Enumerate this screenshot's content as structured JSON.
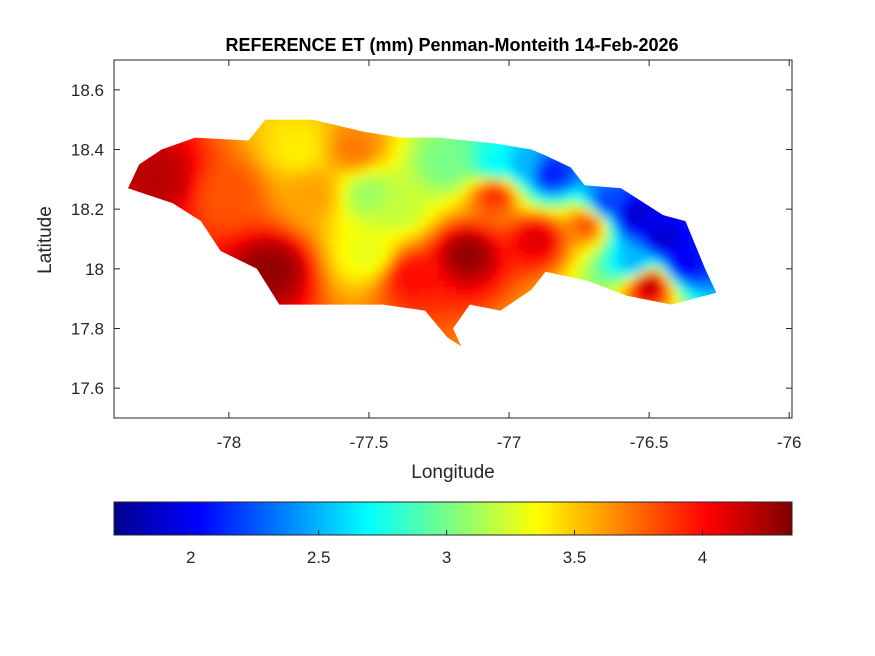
{
  "chart_data": {
    "type": "heatmap",
    "title": "REFERENCE ET (mm) Penman-Monteith 14-Feb-2026",
    "xlabel": "Longitude",
    "ylabel": "Latitude",
    "xlim": [
      -78.41,
      -75.99
    ],
    "ylim": [
      17.5,
      18.7
    ],
    "xticks": [
      -78,
      -77.5,
      -77,
      -76.5,
      -76
    ],
    "xtick_labels": [
      "-78",
      "-77.5",
      "-77",
      "-76.5",
      "-76"
    ],
    "yticks": [
      17.6,
      17.8,
      18,
      18.2,
      18.4,
      18.6
    ],
    "ytick_labels": [
      "17.6",
      "17.8",
      "18",
      "18.2",
      "18.4",
      "18.6"
    ],
    "grid": false,
    "colormap": "jet",
    "colorbar": {
      "orientation": "horizontal",
      "placement": "below",
      "clim": [
        1.7,
        4.35
      ],
      "ticks": [
        2,
        2.5,
        3,
        3.5,
        4
      ],
      "tick_labels": [
        "2",
        "2.5",
        "3",
        "3.5",
        "4"
      ]
    },
    "region_outline_lonlat": [
      [
        -78.36,
        18.27
      ],
      [
        -78.32,
        18.35
      ],
      [
        -78.24,
        18.4
      ],
      [
        -78.12,
        18.44
      ],
      [
        -77.93,
        18.43
      ],
      [
        -77.87,
        18.5
      ],
      [
        -77.7,
        18.5
      ],
      [
        -77.52,
        18.46
      ],
      [
        -77.39,
        18.44
      ],
      [
        -77.25,
        18.44
      ],
      [
        -77.05,
        18.42
      ],
      [
        -76.92,
        18.4
      ],
      [
        -76.87,
        18.38
      ],
      [
        -76.78,
        18.34
      ],
      [
        -76.73,
        18.28
      ],
      [
        -76.6,
        18.27
      ],
      [
        -76.45,
        18.18
      ],
      [
        -76.37,
        18.16
      ],
      [
        -76.3,
        18.0
      ],
      [
        -76.26,
        17.92
      ],
      [
        -76.42,
        17.88
      ],
      [
        -76.58,
        17.91
      ],
      [
        -76.72,
        17.96
      ],
      [
        -76.87,
        17.99
      ],
      [
        -76.92,
        17.93
      ],
      [
        -77.03,
        17.86
      ],
      [
        -77.14,
        17.88
      ],
      [
        -77.2,
        17.8
      ],
      [
        -77.17,
        17.74
      ],
      [
        -77.22,
        17.77
      ],
      [
        -77.3,
        17.86
      ],
      [
        -77.45,
        17.88
      ],
      [
        -77.55,
        17.88
      ],
      [
        -77.82,
        17.88
      ],
      [
        -77.9,
        18.0
      ],
      [
        -78.03,
        18.06
      ],
      [
        -78.1,
        18.16
      ],
      [
        -78.2,
        18.22
      ]
    ],
    "value_field_samples": [
      {
        "lon": -78.25,
        "lat": 18.3,
        "value": 4.2
      },
      {
        "lon": -78.0,
        "lat": 18.25,
        "value": 3.8
      },
      {
        "lon": -77.85,
        "lat": 18.0,
        "value": 4.3
      },
      {
        "lon": -77.75,
        "lat": 18.4,
        "value": 3.4
      },
      {
        "lon": -77.7,
        "lat": 18.25,
        "value": 3.6
      },
      {
        "lon": -77.55,
        "lat": 18.4,
        "value": 3.7
      },
      {
        "lon": -77.5,
        "lat": 18.25,
        "value": 3.1
      },
      {
        "lon": -77.5,
        "lat": 18.05,
        "value": 3.3
      },
      {
        "lon": -77.4,
        "lat": 18.2,
        "value": 3.2
      },
      {
        "lon": -77.35,
        "lat": 17.98,
        "value": 4.0
      },
      {
        "lon": -77.22,
        "lat": 18.35,
        "value": 3.0
      },
      {
        "lon": -77.15,
        "lat": 18.05,
        "value": 4.3
      },
      {
        "lon": -77.05,
        "lat": 18.25,
        "value": 3.9
      },
      {
        "lon": -77.05,
        "lat": 18.35,
        "value": 2.7
      },
      {
        "lon": -76.95,
        "lat": 18.35,
        "value": 2.5
      },
      {
        "lon": -76.85,
        "lat": 18.32,
        "value": 2.1
      },
      {
        "lon": -76.9,
        "lat": 18.1,
        "value": 4.1
      },
      {
        "lon": -76.72,
        "lat": 18.15,
        "value": 3.8
      },
      {
        "lon": -76.65,
        "lat": 18.22,
        "value": 2.2
      },
      {
        "lon": -76.55,
        "lat": 18.18,
        "value": 1.9
      },
      {
        "lon": -76.45,
        "lat": 18.1,
        "value": 1.9
      },
      {
        "lon": -76.38,
        "lat": 18.02,
        "value": 2.0
      },
      {
        "lon": -76.55,
        "lat": 18.02,
        "value": 2.5
      },
      {
        "lon": -76.5,
        "lat": 17.95,
        "value": 4.2
      }
    ]
  }
}
